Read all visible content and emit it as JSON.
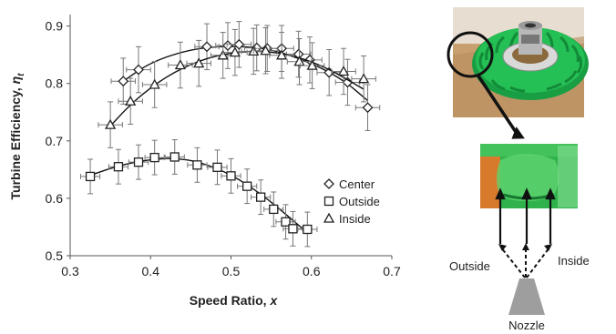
{
  "chart_data": {
    "type": "scatter",
    "xlabel_main": "Speed Ratio, ",
    "xlabel_var": "x",
    "ylabel_main": "Turbine Efficiency, ",
    "ylabel_var": "η",
    "ylabel_sub": "t",
    "xlim": [
      0.3,
      0.7
    ],
    "ylim": [
      0.5,
      0.92
    ],
    "xticks": [
      0.3,
      0.4,
      0.5,
      0.6,
      0.7
    ],
    "xtick_labels": [
      "0.3",
      "0.4",
      "0.5",
      "0.6",
      "0.7"
    ],
    "yticks": [
      0.5,
      0.6,
      0.7,
      0.8,
      0.9
    ],
    "ytick_labels": [
      "0.5",
      "0.6",
      "0.7",
      "0.8",
      "0.9"
    ],
    "grid": false,
    "legend_position": "right-middle",
    "series": [
      {
        "name": "Center",
        "marker": "diamond",
        "x": [
          0.366,
          0.385,
          0.47,
          0.496,
          0.51,
          0.532,
          0.545,
          0.563,
          0.584,
          0.598,
          0.622,
          0.645,
          0.67
        ],
        "y": [
          0.804,
          0.824,
          0.864,
          0.866,
          0.868,
          0.862,
          0.861,
          0.861,
          0.851,
          0.841,
          0.819,
          0.802,
          0.758
        ],
        "yerr": 0.04,
        "xerr": 0.015,
        "fit_curve": [
          [
            0.366,
            0.804
          ],
          [
            0.4,
            0.837
          ],
          [
            0.45,
            0.86
          ],
          [
            0.5,
            0.866
          ],
          [
            0.55,
            0.86
          ],
          [
            0.6,
            0.836
          ],
          [
            0.64,
            0.806
          ],
          [
            0.67,
            0.77
          ]
        ]
      },
      {
        "name": "Outside",
        "marker": "square",
        "x": [
          0.325,
          0.36,
          0.385,
          0.405,
          0.43,
          0.458,
          0.483,
          0.5,
          0.52,
          0.537,
          0.553,
          0.568,
          0.577,
          0.595
        ],
        "y": [
          0.638,
          0.655,
          0.663,
          0.671,
          0.672,
          0.658,
          0.654,
          0.639,
          0.621,
          0.602,
          0.581,
          0.559,
          0.547,
          0.546
        ],
        "yerr": 0.03,
        "xerr": 0.012,
        "fit_curve": [
          [
            0.325,
            0.64
          ],
          [
            0.36,
            0.657
          ],
          [
            0.4,
            0.668
          ],
          [
            0.43,
            0.67
          ],
          [
            0.46,
            0.664
          ],
          [
            0.5,
            0.642
          ],
          [
            0.54,
            0.605
          ],
          [
            0.57,
            0.57
          ],
          [
            0.595,
            0.54
          ]
        ]
      },
      {
        "name": "Inside",
        "marker": "triangle",
        "x": [
          0.35,
          0.375,
          0.405,
          0.437,
          0.46,
          0.49,
          0.505,
          0.528,
          0.543,
          0.563,
          0.585,
          0.601,
          0.64,
          0.665
        ],
        "y": [
          0.728,
          0.769,
          0.798,
          0.832,
          0.835,
          0.849,
          0.854,
          0.856,
          0.857,
          0.849,
          0.838,
          0.831,
          0.821,
          0.808
        ],
        "yerr": 0.04,
        "xerr": 0.015,
        "fit_curve": [
          [
            0.35,
            0.726
          ],
          [
            0.38,
            0.771
          ],
          [
            0.42,
            0.813
          ],
          [
            0.46,
            0.84
          ],
          [
            0.5,
            0.854
          ],
          [
            0.54,
            0.857
          ],
          [
            0.58,
            0.848
          ],
          [
            0.62,
            0.827
          ],
          [
            0.665,
            0.79
          ]
        ]
      }
    ]
  },
  "diagram": {
    "label_outside": "Outside",
    "label_inside": "Inside",
    "label_nozzle": "Nozzle"
  },
  "colors": {
    "turbine_green": "#1fb84d",
    "hub_silver": "#b8b8b8",
    "table_wood": "#c8a070",
    "nozzle_gray": "#9e9e9e",
    "axis": "#555555"
  },
  "icons": {
    "photo_turbine": "turbine-photo",
    "photo_blade": "blade-closeup-photo"
  }
}
